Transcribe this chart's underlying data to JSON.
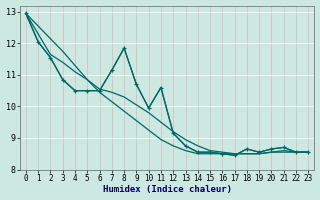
{
  "xlabel": "Humidex (Indice chaleur)",
  "bg_color": "#cce8e0",
  "grid_color": "#b0d4cc",
  "line_color": "#006868",
  "xlim": [
    -0.5,
    23.5
  ],
  "ylim": [
    8,
    13.2
  ],
  "yticks": [
    8,
    9,
    10,
    11,
    12,
    13
  ],
  "xticks": [
    0,
    1,
    2,
    3,
    4,
    5,
    6,
    7,
    8,
    9,
    10,
    11,
    12,
    13,
    14,
    15,
    16,
    17,
    18,
    19,
    20,
    21,
    22,
    23
  ],
  "line1_x": [
    0,
    1,
    2,
    3,
    4,
    5,
    6,
    7,
    8,
    9,
    10,
    11,
    12,
    13,
    14,
    15,
    16,
    17,
    18,
    19,
    20,
    21,
    22,
    23
  ],
  "line1_y": [
    12.95,
    12.05,
    11.55,
    10.85,
    10.5,
    10.5,
    10.5,
    11.15,
    11.85,
    10.7,
    9.95,
    10.6,
    9.15,
    8.75,
    8.55,
    8.55,
    8.5,
    8.45,
    8.65,
    8.55,
    8.65,
    8.7,
    8.55,
    8.55
  ],
  "line2_x": [
    0,
    1,
    2,
    3,
    4,
    5,
    6,
    7,
    8,
    9,
    10,
    11,
    12,
    13,
    14,
    15,
    16,
    17,
    18,
    19,
    20,
    21,
    22,
    23
  ],
  "line2_y": [
    12.95,
    12.05,
    11.55,
    10.85,
    10.5,
    10.5,
    10.5,
    11.15,
    11.85,
    10.7,
    9.95,
    10.6,
    9.15,
    8.75,
    8.55,
    8.55,
    8.5,
    8.45,
    8.65,
    8.55,
    8.65,
    8.7,
    8.55,
    8.55
  ],
  "line3_x": [
    0,
    1,
    2,
    3,
    4,
    5,
    6,
    7,
    8,
    9,
    10,
    11,
    12,
    13,
    14,
    15,
    16,
    17,
    18,
    19,
    20,
    21,
    22,
    23
  ],
  "line3_y": [
    12.95,
    12.3,
    11.65,
    11.4,
    11.1,
    10.85,
    10.55,
    10.45,
    10.3,
    10.05,
    9.8,
    9.5,
    9.2,
    8.95,
    8.75,
    8.6,
    8.55,
    8.5,
    8.5,
    8.5,
    8.55,
    8.6,
    8.55,
    8.55
  ],
  "line4_x": [
    0,
    1,
    2,
    3,
    4,
    5,
    6,
    7,
    8,
    9,
    10,
    11,
    12,
    13,
    14,
    15,
    16,
    17,
    18,
    19,
    20,
    21,
    22,
    23
  ],
  "line4_y": [
    12.95,
    12.55,
    12.15,
    11.75,
    11.3,
    10.85,
    10.45,
    10.15,
    9.85,
    9.55,
    9.25,
    8.95,
    8.75,
    8.6,
    8.5,
    8.5,
    8.5,
    8.5,
    8.5,
    8.5,
    8.55,
    8.55,
    8.55,
    8.55
  ]
}
